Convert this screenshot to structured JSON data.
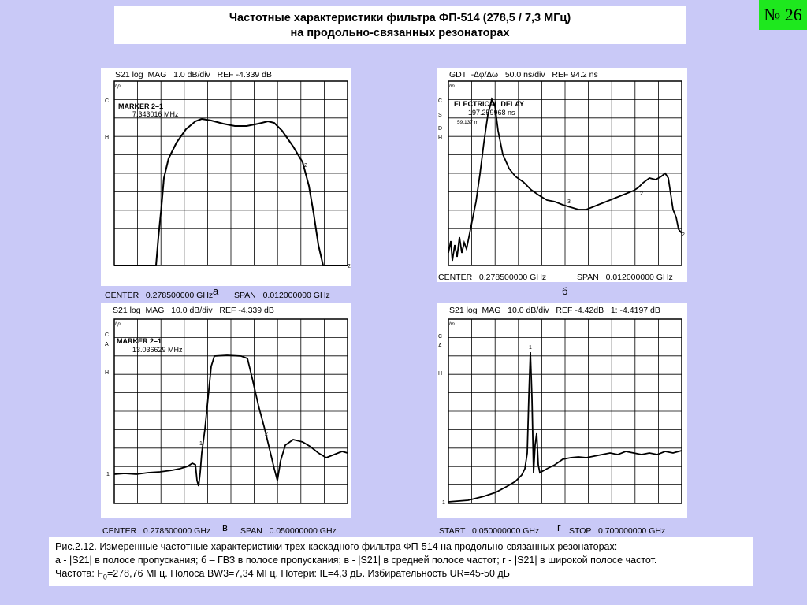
{
  "title": {
    "line1": "Частотные характеристики фильтра ФП-514 (278,5 / 7,3 МГц)",
    "line2": "на продольно-связанных резонаторах"
  },
  "badge": "№ 26",
  "panels": {
    "a": {
      "header": "S21 log  MAG   1.0 dB/div   REF -4.339 dB",
      "marker_title": "MARKER  2–1",
      "marker_value": "7.343016  MHz",
      "footer_left": "CENTER   0.278500000 GHz",
      "footer_right": "SPAN   0.012000000 GHz",
      "label": "а"
    },
    "b": {
      "header": "GDT  -∆φ/∆ω   50.0 ns/div   REF 94.2 ns",
      "marker_title": "ELECTRICAL DELAY",
      "marker_value": "197.259968   ns",
      "marker_sub": "59.137 m",
      "footer_left": "CENTER   0.278500000 GHz",
      "footer_right": "SPAN   0.012000000 GHz",
      "label": "б"
    },
    "c": {
      "header": "S21 log  MAG   10.0 dB/div   REF -4.339 dB",
      "marker_title": "MARKER  2–1",
      "marker_value": "13.036629 MHz",
      "footer_left": "CENTER   0.278500000 GHz",
      "footer_right": "SPAN   0.050000000 GHz",
      "label": "в"
    },
    "d": {
      "header": "S21 log  MAG   10.0 dB/div   REF -4.42dB   1: -4.4197 dB",
      "footer_left": "START   0.050000000 GHz",
      "footer_right": "STOP   0.700000000 GHz",
      "label": "г"
    }
  },
  "screen_letters": {
    "hp": "hp",
    "c": "C",
    "s": "S",
    "d": "D",
    "h": "H",
    "a": "A",
    "one": "1",
    "two": "2"
  },
  "caption": {
    "line1": "Рис.2.12. Измеренные частотные характеристики трех-каскадного фильтра ФП-514 на продольно-связанных резонаторах:",
    "line2": "а - |S21| в полосе пропускания; б – ГВЗ в полосе пропускания; в - |S21| в средней полосе частот; г - |S21| в широкой полосе частот.",
    "line3_pre": "Частота: F",
    "line3_sub": "0",
    "line3_post": "=278,76 МГц. Полоса BW3=7,34 МГц. Потери: IL=4,3 дБ. Избирательность UR=45-50 дБ"
  }
}
